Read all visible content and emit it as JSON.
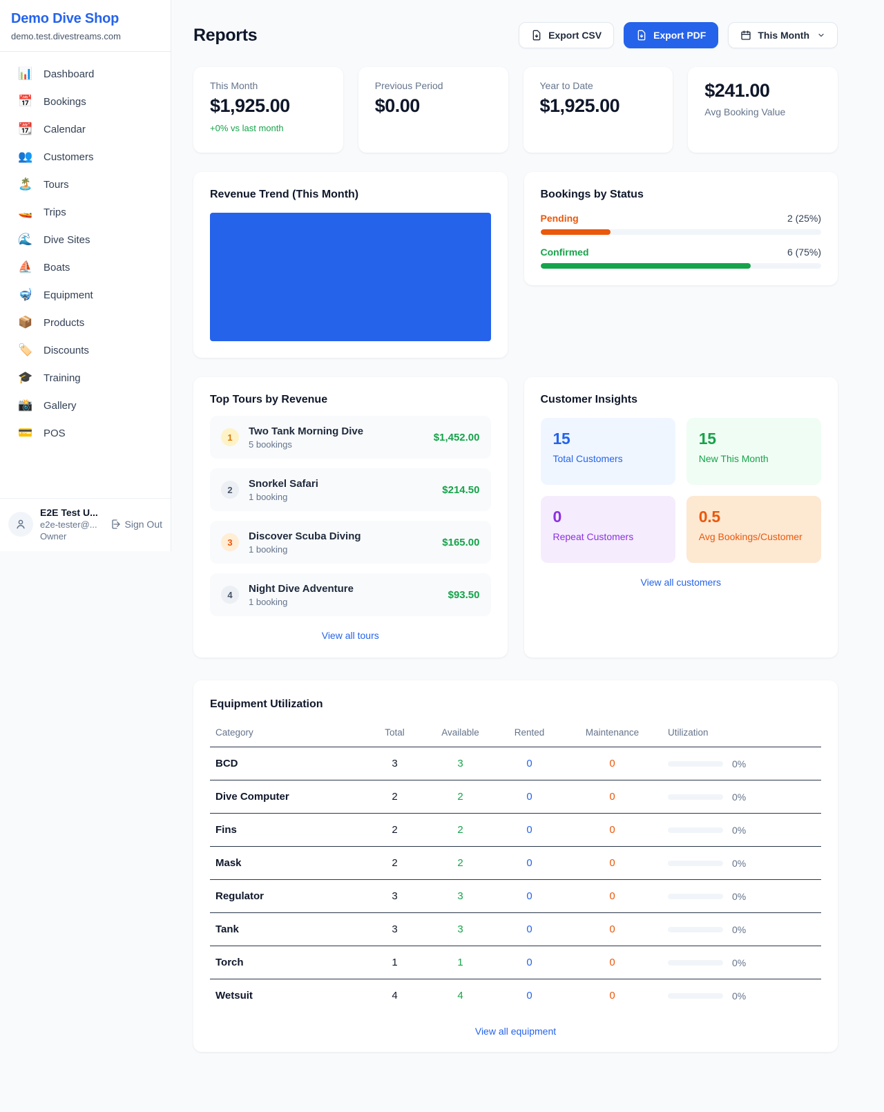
{
  "sidebar": {
    "brand": {
      "name": "Demo Dive Shop",
      "domain": "demo.test.divestreams.com"
    },
    "items": [
      {
        "icon": "bar-chart-icon",
        "emoji": "📊",
        "label": "Dashboard"
      },
      {
        "icon": "calendar-date-icon",
        "emoji": "📅",
        "label": "Bookings"
      },
      {
        "icon": "tear-calendar-icon",
        "emoji": "📆",
        "label": "Calendar"
      },
      {
        "icon": "people-icon",
        "emoji": "👥",
        "label": "Customers"
      },
      {
        "icon": "island-icon",
        "emoji": "🏝️",
        "label": "Tours"
      },
      {
        "icon": "speedboat-icon",
        "emoji": "🚤",
        "label": "Trips"
      },
      {
        "icon": "wave-icon",
        "emoji": "🌊",
        "label": "Dive Sites"
      },
      {
        "icon": "sailboat-icon",
        "emoji": "⛵",
        "label": "Boats"
      },
      {
        "icon": "diving-mask-icon",
        "emoji": "🤿",
        "label": "Equipment"
      },
      {
        "icon": "package-icon",
        "emoji": "📦",
        "label": "Products"
      },
      {
        "icon": "tag-icon",
        "emoji": "🏷️",
        "label": "Discounts"
      },
      {
        "icon": "grad-cap-icon",
        "emoji": "🎓",
        "label": "Training"
      },
      {
        "icon": "camera-icon",
        "emoji": "📸",
        "label": "Gallery"
      },
      {
        "icon": "credit-card-icon",
        "emoji": "💳",
        "label": "POS"
      }
    ],
    "user": {
      "name": "E2E Test U...",
      "email": "e2e-tester@...",
      "role": "Owner",
      "sign_out": "Sign Out"
    }
  },
  "header": {
    "title": "Reports",
    "export_csv": "Export CSV",
    "export_pdf": "Export PDF",
    "period": "This Month"
  },
  "stats": [
    {
      "label": "This Month",
      "value": "$1,925.00",
      "delta": "+0% vs last month"
    },
    {
      "label": "Previous Period",
      "value": "$0.00"
    },
    {
      "label": "Year to Date",
      "value": "$1,925.00"
    },
    {
      "label": "Avg Booking Value",
      "value": "$241.00"
    }
  ],
  "revenue_trend": {
    "title": "Revenue Trend (This Month)",
    "bar_color": "#2563eb"
  },
  "bookings_by_status": {
    "title": "Bookings by Status",
    "rows": [
      {
        "label": "Pending",
        "value": "2 (25%)",
        "pct": 25,
        "color": "#ea580c",
        "label_color": "#ea580c"
      },
      {
        "label": "Confirmed",
        "value": "6 (75%)",
        "pct": 75,
        "color": "#16a34a",
        "label_color": "#16a34a"
      }
    ]
  },
  "top_tours": {
    "title": "Top Tours by Revenue",
    "link": "View all tours",
    "rows": [
      {
        "rank": "1",
        "name": "Two Tank Morning Dive",
        "bookings": "5 bookings",
        "amount": "$1,452.00"
      },
      {
        "rank": "2",
        "name": "Snorkel Safari",
        "bookings": "1 booking",
        "amount": "$214.50"
      },
      {
        "rank": "3",
        "name": "Discover Scuba Diving",
        "bookings": "1 booking",
        "amount": "$165.00"
      },
      {
        "rank": "4",
        "name": "Night Dive Adventure",
        "bookings": "1 booking",
        "amount": "$93.50"
      }
    ]
  },
  "customer_insights": {
    "title": "Customer Insights",
    "link": "View all customers",
    "boxes": [
      {
        "value": "15",
        "label": "Total Customers",
        "accent": "#2563eb"
      },
      {
        "value": "15",
        "label": "New This Month",
        "accent": "#16a34a"
      },
      {
        "value": "0",
        "label": "Repeat Customers",
        "accent": "#8b31e0"
      },
      {
        "value": "0.5",
        "label": "Avg Bookings/Customer",
        "accent": "#ea580c"
      }
    ]
  },
  "equipment": {
    "title": "Equipment Utilization",
    "link": "View all equipment",
    "columns": [
      "Category",
      "Total",
      "Available",
      "Rented",
      "Maintenance",
      "Utilization"
    ],
    "rows": [
      {
        "category": "BCD",
        "total": "3",
        "available": "3",
        "rented": "0",
        "maintenance": "0",
        "utilization": "0%"
      },
      {
        "category": "Dive Computer",
        "total": "2",
        "available": "2",
        "rented": "0",
        "maintenance": "0",
        "utilization": "0%"
      },
      {
        "category": "Fins",
        "total": "2",
        "available": "2",
        "rented": "0",
        "maintenance": "0",
        "utilization": "0%"
      },
      {
        "category": "Mask",
        "total": "2",
        "available": "2",
        "rented": "0",
        "maintenance": "0",
        "utilization": "0%"
      },
      {
        "category": "Regulator",
        "total": "3",
        "available": "3",
        "rented": "0",
        "maintenance": "0",
        "utilization": "0%"
      },
      {
        "category": "Tank",
        "total": "3",
        "available": "3",
        "rented": "0",
        "maintenance": "0",
        "utilization": "0%"
      },
      {
        "category": "Torch",
        "total": "1",
        "available": "1",
        "rented": "0",
        "maintenance": "0",
        "utilization": "0%"
      },
      {
        "category": "Wetsuit",
        "total": "4",
        "available": "4",
        "rented": "0",
        "maintenance": "0",
        "utilization": "0%"
      }
    ]
  },
  "chart_data": [
    {
      "type": "bar",
      "title": "Revenue Trend (This Month)",
      "categories": [
        "This Month"
      ],
      "values": [
        1925.0
      ],
      "bar_color": "#2563eb",
      "notes": "single full-width solid bar, no axes or labels shown"
    },
    {
      "type": "bar",
      "title": "Bookings by Status",
      "categories": [
        "Pending",
        "Confirmed"
      ],
      "values": [
        2,
        6
      ],
      "percentages": [
        25,
        75
      ],
      "colors": [
        "#ea580c",
        "#16a34a"
      ],
      "notes": "horizontal progress bars with counts and percentages"
    }
  ]
}
